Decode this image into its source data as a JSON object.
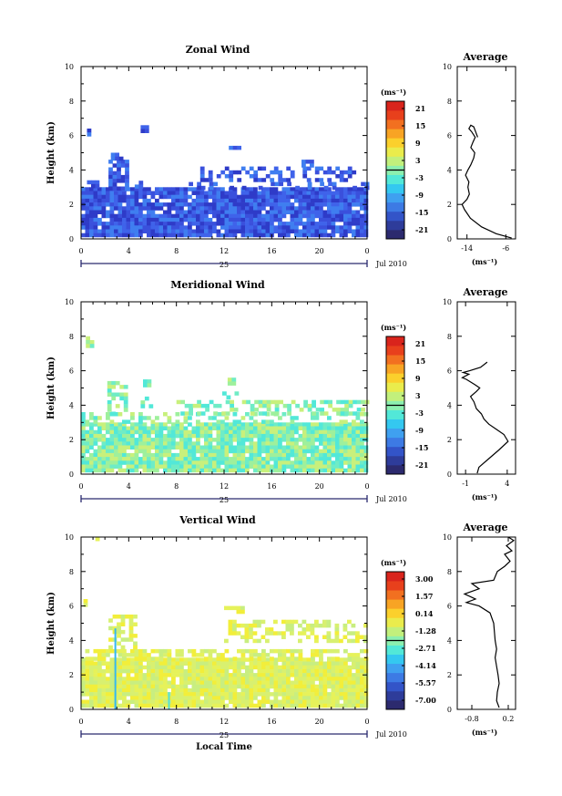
{
  "colors": {
    "colorbar": [
      "#2c2a6e",
      "#2e3c9a",
      "#3354c8",
      "#3d7ae4",
      "#3fa0f0",
      "#34c8f0",
      "#52e8d8",
      "#8cf0b0",
      "#c2f07c",
      "#eaec4c",
      "#fbd02c",
      "#f8a424",
      "#f27020",
      "#e8401c",
      "#d9241c"
    ],
    "zonal_patch": [
      "#2e3bc8",
      "#3a50dc",
      "#3f63ea",
      "#3f7ef0"
    ],
    "merid_patch": [
      "#52e8d8",
      "#6fecc6",
      "#9ef09c",
      "#c8f07c"
    ],
    "vert_patch": [
      "#d8f070",
      "#e6f25a",
      "#f2ee3a",
      "#c8ee80"
    ]
  },
  "panels": [
    {
      "id": "zonal",
      "title": "Zonal Wind",
      "avg_title": "Average",
      "ylabel": "Height (km)",
      "y_ticks": [
        "0",
        "2",
        "4",
        "6",
        "8",
        "10"
      ],
      "x_ticks": [
        "0",
        "4",
        "8",
        "12",
        "16",
        "20",
        "0"
      ],
      "date_mid": "25",
      "date_right": "Jul 2010",
      "unit": "(ms⁻¹)",
      "cbar_labels": [
        "21",
        "15",
        "9",
        "3",
        "-3",
        "-9",
        "-15",
        "-21"
      ],
      "avg_xticks": [
        "-14",
        "-6"
      ],
      "avg_xlim": [
        -16,
        -4
      ],
      "avg_unit": "(ms⁻¹)",
      "xlabel": "",
      "avg_profile": [
        [
          -4.8,
          0.05
        ],
        [
          -8,
          0.3
        ],
        [
          -11,
          0.7
        ],
        [
          -13.3,
          1.2
        ],
        [
          -14.5,
          1.7
        ],
        [
          -15,
          2.0
        ],
        [
          -14,
          2.3
        ],
        [
          -13.5,
          2.6
        ],
        [
          -13.8,
          3.0
        ],
        [
          -13.6,
          3.3
        ],
        [
          -14.3,
          3.7
        ],
        [
          -13.8,
          4.0
        ],
        [
          -13.2,
          4.3
        ],
        [
          -12.6,
          4.7
        ],
        [
          -12.4,
          5.0
        ],
        [
          -13.2,
          5.3
        ],
        [
          -12.8,
          5.6
        ],
        [
          -12.3,
          5.9
        ],
        [
          -13,
          6.2
        ],
        [
          -13.6,
          6.4
        ],
        [
          -13.2,
          6.6
        ],
        [
          -12.6,
          6.5
        ],
        [
          -12.2,
          6.2
        ],
        [
          -11.8,
          5.9
        ]
      ],
      "patch_regions": [
        [
          0,
          24,
          0.2,
          3.0,
          0.93
        ],
        [
          2.3,
          3.8,
          3.0,
          4.6,
          0.75
        ],
        [
          4.5,
          5.0,
          3.0,
          3.6,
          0.6
        ],
        [
          0.5,
          1.2,
          3.0,
          3.4,
          0.6
        ],
        [
          8,
          24,
          3.0,
          3.3,
          0.3
        ],
        [
          10,
          23,
          3.5,
          4.2,
          0.45
        ],
        [
          2.5,
          3.5,
          4.6,
          5.0,
          0.6
        ],
        [
          12.4,
          13.2,
          5.2,
          5.4,
          0.95
        ],
        [
          0.5,
          0.8,
          6.1,
          6.4,
          0.9
        ],
        [
          5.0,
          5.4,
          6.3,
          6.6,
          0.9
        ],
        [
          18.5,
          19.5,
          4.3,
          4.6,
          0.7
        ]
      ]
    },
    {
      "id": "meridional",
      "title": "Meridional Wind",
      "avg_title": "Average",
      "ylabel": "Height (km)",
      "y_ticks": [
        "0",
        "2",
        "4",
        "6",
        "8",
        "10"
      ],
      "x_ticks": [
        "0",
        "4",
        "8",
        "12",
        "16",
        "20",
        "0"
      ],
      "date_mid": "25",
      "date_right": "Jul 2010",
      "unit": "(ms⁻¹)",
      "cbar_labels": [
        "21",
        "15",
        "9",
        "3",
        "-3",
        "-9",
        "-15",
        "-21"
      ],
      "avg_xticks": [
        "-1",
        "4"
      ],
      "avg_xlim": [
        -2,
        5
      ],
      "avg_unit": "(ms⁻¹)",
      "xlabel": "",
      "avg_profile": [
        [
          0.4,
          0.05
        ],
        [
          0.6,
          0.4
        ],
        [
          1.8,
          0.9
        ],
        [
          3.0,
          1.4
        ],
        [
          4.1,
          1.9
        ],
        [
          3.6,
          2.3
        ],
        [
          2.7,
          2.6
        ],
        [
          1.8,
          2.9
        ],
        [
          1.2,
          3.2
        ],
        [
          0.9,
          3.5
        ],
        [
          0.3,
          3.8
        ],
        [
          0.0,
          4.2
        ],
        [
          -0.4,
          4.5
        ],
        [
          0.3,
          4.8
        ],
        [
          0.7,
          5.0
        ],
        [
          0.1,
          5.2
        ],
        [
          -0.9,
          5.5
        ],
        [
          -1.4,
          5.6
        ],
        [
          -0.6,
          5.8
        ],
        [
          -1.3,
          5.9
        ],
        [
          -0.5,
          6.0
        ],
        [
          0.8,
          6.2
        ],
        [
          1.6,
          6.5
        ]
      ],
      "patch_regions": [
        [
          0,
          24,
          0.2,
          3.0,
          0.93
        ],
        [
          0,
          24,
          3.0,
          3.6,
          0.35
        ],
        [
          2.2,
          3.6,
          3.6,
          5.4,
          0.65
        ],
        [
          5,
          6,
          4.0,
          4.5,
          0.6
        ],
        [
          8,
          24,
          3.6,
          4.3,
          0.5
        ],
        [
          11.5,
          13,
          4.4,
          4.8,
          0.6
        ],
        [
          0.4,
          0.8,
          7.5,
          8.0,
          0.8
        ],
        [
          5.2,
          5.6,
          5.1,
          5.5,
          0.9
        ],
        [
          12.3,
          12.7,
          5.2,
          5.6,
          0.9
        ]
      ]
    },
    {
      "id": "vertical",
      "title": "Vertical Wind",
      "avg_title": "Average",
      "ylabel": "Height (km)",
      "y_ticks": [
        "0",
        "2",
        "4",
        "6",
        "8",
        "10"
      ],
      "x_ticks": [
        "0",
        "4",
        "8",
        "12",
        "16",
        "20",
        "0"
      ],
      "date_mid": "25",
      "date_right": "Jul 2010",
      "unit": "(ms⁻¹)",
      "cbar_labels": [
        "3.00",
        "1.57",
        "0.14",
        "-1.28",
        "-2.71",
        "-4.14",
        "-5.57",
        "-7.00"
      ],
      "avg_xticks": [
        "-0.8",
        "0.2"
      ],
      "avg_xlim": [
        -1.2,
        0.4
      ],
      "avg_unit": "(ms⁻¹)",
      "xlabel": "Local Time",
      "avg_profile": [
        [
          -0.05,
          0.1
        ],
        [
          -0.12,
          0.5
        ],
        [
          -0.1,
          1.0
        ],
        [
          -0.05,
          1.5
        ],
        [
          -0.08,
          2.0
        ],
        [
          -0.12,
          2.5
        ],
        [
          -0.16,
          3.0
        ],
        [
          -0.12,
          3.5
        ],
        [
          -0.16,
          4.0
        ],
        [
          -0.18,
          4.5
        ],
        [
          -0.2,
          5.0
        ],
        [
          -0.3,
          5.6
        ],
        [
          -0.6,
          6.0
        ],
        [
          -0.95,
          6.2
        ],
        [
          -0.7,
          6.4
        ],
        [
          -1.0,
          6.7
        ],
        [
          -0.6,
          7.0
        ],
        [
          -0.8,
          7.3
        ],
        [
          -0.2,
          7.5
        ],
        [
          -0.1,
          8.0
        ],
        [
          0.1,
          8.3
        ],
        [
          0.25,
          8.6
        ],
        [
          0.1,
          9.0
        ],
        [
          0.3,
          9.2
        ],
        [
          0.15,
          9.5
        ],
        [
          0.35,
          9.8
        ],
        [
          0.2,
          10.0
        ]
      ],
      "patch_regions": [
        [
          0,
          24,
          0.2,
          3.0,
          0.95
        ],
        [
          0,
          24,
          3.0,
          3.5,
          0.6
        ],
        [
          2.3,
          4.5,
          3.5,
          5.5,
          0.55
        ],
        [
          12,
          24,
          4.0,
          5.2,
          0.5
        ],
        [
          12.0,
          13.5,
          5.6,
          6.0,
          0.8
        ],
        [
          0.2,
          0.5,
          6.1,
          6.4,
          0.9
        ],
        [
          1.2,
          1.5,
          9.8,
          10.0,
          0.9
        ]
      ]
    }
  ]
}
